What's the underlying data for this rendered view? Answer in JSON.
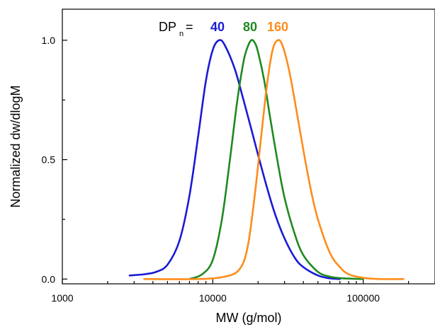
{
  "chart_data": {
    "type": "line",
    "xscale": "log",
    "xlabel": "MW (g/mol)",
    "ylabel": "Normalized dw/dlogM",
    "xlim": [
      1000,
      300000
    ],
    "ylim": [
      -0.02,
      1.13
    ],
    "xticks": [
      1000,
      10000,
      100000
    ],
    "xticklabels": [
      "1000",
      "10000",
      "100000"
    ],
    "yticks": [
      0.0,
      0.5,
      1.0
    ],
    "yticklabels": [
      "0.0",
      "0.5",
      "1.0"
    ],
    "grid": false,
    "annotation": {
      "prefix": "DP",
      "subscript": "n",
      "equals": " ="
    },
    "series": [
      {
        "name": "40",
        "color": "#1a1ad6",
        "x": [
          2800,
          3500,
          4200,
          5000,
          6000,
          7000,
          8000,
          9000,
          10000,
          11000,
          12000,
          14000,
          16000,
          18000,
          20000,
          23000,
          26000,
          30000,
          35000,
          40000,
          50000,
          60000,
          70000
        ],
        "y": [
          0.015,
          0.02,
          0.03,
          0.06,
          0.16,
          0.35,
          0.6,
          0.83,
          0.96,
          1.0,
          0.98,
          0.88,
          0.75,
          0.63,
          0.52,
          0.38,
          0.27,
          0.17,
          0.09,
          0.05,
          0.015,
          0.003,
          0.0
        ]
      },
      {
        "name": "80",
        "color": "#1f8a1f",
        "x": [
          7000,
          8500,
          10000,
          11500,
          13000,
          14500,
          16000,
          17000,
          18000,
          19000,
          20000,
          22000,
          24000,
          27000,
          30000,
          35000,
          40000,
          50000,
          60000,
          70000,
          80000,
          100000
        ],
        "y": [
          0.0,
          0.02,
          0.08,
          0.25,
          0.5,
          0.74,
          0.91,
          0.97,
          1.0,
          0.99,
          0.95,
          0.83,
          0.68,
          0.49,
          0.34,
          0.19,
          0.1,
          0.03,
          0.01,
          0.004,
          0.002,
          0.0
        ]
      },
      {
        "name": "160",
        "color": "#ff8c1a",
        "x": [
          3500,
          8000,
          12000,
          15000,
          17000,
          19000,
          21000,
          23000,
          25000,
          27000,
          29000,
          32000,
          35000,
          40000,
          45000,
          50000,
          60000,
          70000,
          80000,
          100000,
          130000,
          185000
        ],
        "y": [
          0.0,
          0.0,
          0.01,
          0.04,
          0.13,
          0.35,
          0.6,
          0.82,
          0.96,
          1.0,
          0.98,
          0.88,
          0.75,
          0.54,
          0.37,
          0.25,
          0.11,
          0.05,
          0.02,
          0.005,
          0.0,
          0.0
        ]
      }
    ]
  }
}
